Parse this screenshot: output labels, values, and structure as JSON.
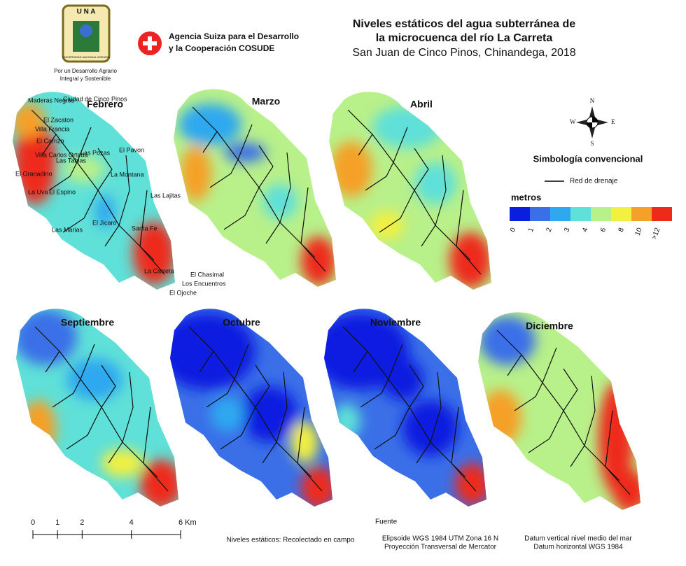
{
  "header": {
    "title_line1": "Niveles estáticos del agua subterránea de",
    "title_line2": "la microcuenca del río La Carreta",
    "subtitle": "San Juan de Cinco Pinos, Chinandega, 2018",
    "una_logo": {
      "acronym": "U N A",
      "ring": "UNIVERSIDAD NACIONAL AGRARIA",
      "motto_line1": "Por un Desarrollo Agrario",
      "motto_line2": "Integral y Sostenible"
    },
    "cosude": {
      "line1": "Agencia Suiza para el Desarrollo",
      "line2": "y la Cooperación COSUDE"
    }
  },
  "maps": [
    {
      "month": "Febrero"
    },
    {
      "month": "Marzo"
    },
    {
      "month": "Abril"
    },
    {
      "month": "Septiembre"
    },
    {
      "month": "Octubre"
    },
    {
      "month": "Noviembre"
    },
    {
      "month": "Diciembre"
    }
  ],
  "places": [
    "Maderas Negras",
    "Ciudad de Cinco Pinos",
    "El Zacaton",
    "Villa Francia",
    "El Carrizo",
    "Villa Carlos Orteda",
    "El Granadino",
    "Las Pozas",
    "Las Tablas",
    "El Pavon",
    "La Montana",
    "La Uva",
    "El Espino",
    "Las Lajitas",
    "Las Marias",
    "El Jicaro",
    "Santa Fe",
    "La Carreta",
    "El Chasimal",
    "Los Encuentros",
    "El Ojoche"
  ],
  "compass": {
    "n": "N",
    "s": "S",
    "e": "E",
    "w": "W"
  },
  "legend": {
    "title": "Simbología convencional",
    "drainage": "Red de drenaje",
    "unit": "metros",
    "colors": [
      "#0a1ee0",
      "#3a6fe8",
      "#2fa8ef",
      "#5fe0d8",
      "#b8f08a",
      "#f2f040",
      "#f5a028",
      "#ee2a1a"
    ],
    "labels": [
      "0",
      "1",
      "2",
      "3",
      "4",
      "6",
      "8",
      "10",
      ">12"
    ]
  },
  "scale": {
    "ticks": [
      0,
      1,
      2,
      4,
      {
        "value": 6,
        "label": "6 Km"
      }
    ]
  },
  "notes": {
    "source": "Niveles  estáticos: Recolectado en campo",
    "fuente": "Fuente",
    "ellipsoid": "Elipsoide WGS 1984 UTM Zona 16 N",
    "projection": "Proyección Transversal de Mercator",
    "datum_v": "Datum vertical nivel medio del mar",
    "datum_h": "Datum horizontal WGS 1984"
  }
}
